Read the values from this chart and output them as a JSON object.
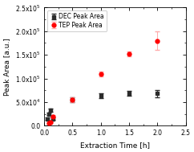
{
  "title": "",
  "xlabel": "Extraction Time [h]",
  "ylabel": "Peak Area [a.u.]",
  "xlim": [
    0,
    2.5
  ],
  "ylim": [
    0,
    250000.0
  ],
  "dec_x": [
    0.05,
    0.083,
    0.117,
    0.15,
    0.5,
    1.0,
    1.5,
    2.0
  ],
  "dec_y": [
    15000.0,
    25000.0,
    33000.0,
    15000.0,
    55000.0,
    63000.0,
    68000.0,
    68000.0
  ],
  "dec_yerr": [
    2000.0,
    3000.0,
    3000.0,
    2000.0,
    5000.0,
    5000.0,
    5000.0,
    8000.0
  ],
  "tep_x": [
    0.083,
    0.117,
    0.15,
    0.5,
    1.0,
    1.5,
    2.0
  ],
  "tep_y": [
    5000.0,
    8000.0,
    20000.0,
    55000.0,
    110000.0,
    152000.0,
    180000.0
  ],
  "tep_yerr": [
    1000.0,
    1000.0,
    3000.0,
    5000.0,
    5000.0,
    5000.0,
    20000.0
  ],
  "dec_color": "#2b2b2b",
  "tep_color": "#ff0000",
  "tep_ecolor": "#ffaaaa",
  "dec_marker": "s",
  "tep_marker": "o",
  "dec_label": "DEC Peak Area",
  "tep_label": "TEP Peak Area",
  "legend_fontsize": 5.5,
  "tick_fontsize": 5.5,
  "label_fontsize": 6.5,
  "background_color": "#ffffff",
  "markersize": 3.5,
  "capsize": 2,
  "elinewidth": 0.7,
  "yticks": [
    0.0,
    50000.0,
    100000.0,
    150000.0,
    200000.0,
    250000.0
  ],
  "ytick_labels": [
    "0.0",
    "5.0x10$^{4}$",
    "1.0x10$^{5}$",
    "1.5x10$^{5}$",
    "2.0x10$^{5}$",
    "2.5x10$^{5}$"
  ],
  "xticks": [
    0.0,
    0.5,
    1.0,
    1.5,
    2.0,
    2.5
  ]
}
